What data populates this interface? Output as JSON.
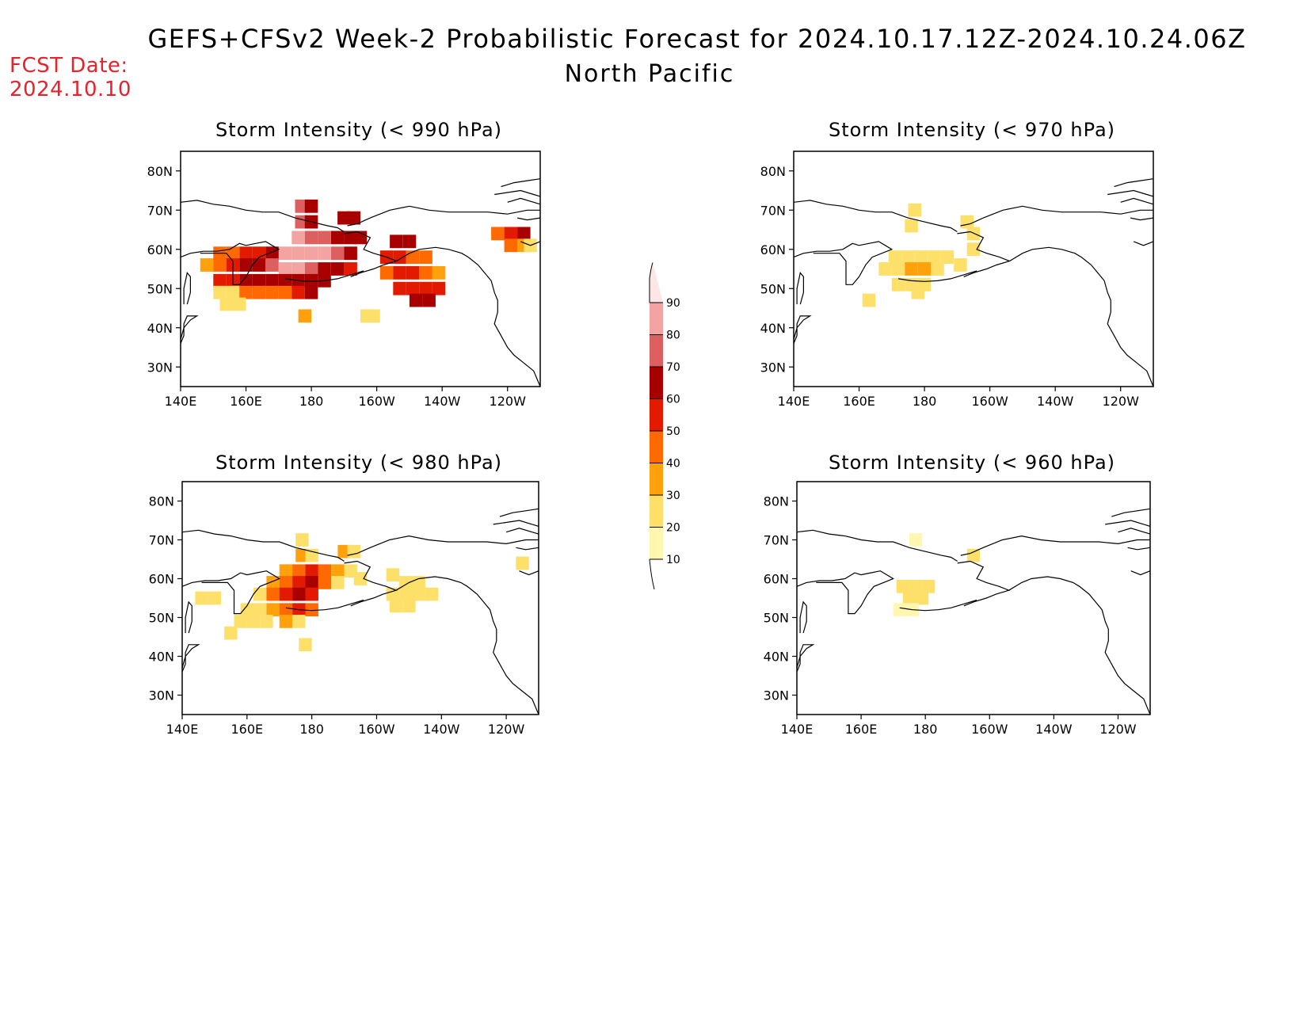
{
  "header": {
    "title": "GEFS+CFSv2 Week-2 Probabilistic Forecast for 2024.10.17.12Z-2024.10.24.06Z",
    "subtitle": "North Pacific",
    "fcst_label": "FCST Date:",
    "fcst_date": "2024.10.10"
  },
  "colors": {
    "fcst_text": "#e8222a",
    "scale": [
      "#fff7b0",
      "#fde06a",
      "#ffa10a",
      "#ff6a00",
      "#e21a00",
      "#a80000",
      "#dd6060",
      "#f4a3a3",
      "#fde6e6"
    ]
  },
  "chart_data": {
    "type": "heatmap",
    "x_ticks": [
      "140E",
      "160E",
      "180",
      "160W",
      "140W",
      "120W"
    ],
    "y_ticks": [
      "80N",
      "70N",
      "60N",
      "50N",
      "40N",
      "30N"
    ],
    "lon_range": [
      140,
      250
    ],
    "lat_range": [
      25,
      85
    ],
    "colorbar": {
      "levels": [
        10,
        20,
        30,
        40,
        50,
        60,
        70,
        80,
        90
      ],
      "labels": [
        "10",
        "20",
        "30",
        "40",
        "50",
        "60",
        "70",
        "80",
        "90"
      ]
    },
    "panels": [
      {
        "id": "p990",
        "title": "Storm Intensity (< 990 hPa)",
        "cells": [
          [
            177,
            71,
            70
          ],
          [
            180,
            71,
            60
          ],
          [
            177,
            67,
            70
          ],
          [
            180,
            67,
            60
          ],
          [
            176,
            63,
            80
          ],
          [
            180,
            63,
            70
          ],
          [
            184,
            63,
            70
          ],
          [
            188,
            63,
            60
          ],
          [
            192,
            63,
            60
          ],
          [
            195,
            63,
            60
          ],
          [
            190,
            68,
            60
          ],
          [
            193,
            68,
            60
          ],
          [
            172,
            59,
            80
          ],
          [
            176,
            59,
            80
          ],
          [
            180,
            59,
            80
          ],
          [
            184,
            59,
            80
          ],
          [
            188,
            59,
            70
          ],
          [
            192,
            59,
            60
          ],
          [
            168,
            59,
            60
          ],
          [
            164,
            59,
            50
          ],
          [
            160,
            59,
            50
          ],
          [
            156,
            59,
            40
          ],
          [
            152,
            59,
            40
          ],
          [
            148,
            56,
            30
          ],
          [
            152,
            56,
            40
          ],
          [
            156,
            56,
            50
          ],
          [
            160,
            56,
            60
          ],
          [
            164,
            56,
            60
          ],
          [
            168,
            56,
            70
          ],
          [
            172,
            55,
            80
          ],
          [
            176,
            55,
            80
          ],
          [
            180,
            55,
            70
          ],
          [
            184,
            55,
            60
          ],
          [
            188,
            55,
            60
          ],
          [
            192,
            55,
            50
          ],
          [
            160,
            52,
            60
          ],
          [
            164,
            52,
            60
          ],
          [
            168,
            52,
            60
          ],
          [
            172,
            52,
            60
          ],
          [
            176,
            52,
            60
          ],
          [
            180,
            52,
            60
          ],
          [
            184,
            52,
            60
          ],
          [
            152,
            52,
            50
          ],
          [
            156,
            52,
            50
          ],
          [
            152,
            49,
            20
          ],
          [
            156,
            49,
            20
          ],
          [
            160,
            49,
            40
          ],
          [
            164,
            49,
            40
          ],
          [
            168,
            49,
            40
          ],
          [
            172,
            49,
            40
          ],
          [
            176,
            49,
            50
          ],
          [
            180,
            49,
            60
          ],
          [
            154,
            46,
            20
          ],
          [
            158,
            46,
            20
          ],
          [
            178,
            43,
            30
          ],
          [
            197,
            43,
            20
          ],
          [
            199,
            43,
            20
          ],
          [
            206,
            62,
            60
          ],
          [
            210,
            62,
            60
          ],
          [
            203,
            58,
            50
          ],
          [
            207,
            58,
            50
          ],
          [
            211,
            58,
            40
          ],
          [
            215,
            58,
            40
          ],
          [
            203,
            54,
            40
          ],
          [
            207,
            54,
            50
          ],
          [
            211,
            54,
            50
          ],
          [
            215,
            54,
            40
          ],
          [
            219,
            54,
            30
          ],
          [
            207,
            50,
            50
          ],
          [
            211,
            50,
            50
          ],
          [
            215,
            50,
            50
          ],
          [
            219,
            50,
            50
          ],
          [
            212,
            47,
            60
          ],
          [
            216,
            47,
            60
          ],
          [
            237,
            64,
            40
          ],
          [
            241,
            64,
            50
          ],
          [
            245,
            64,
            60
          ],
          [
            241,
            61,
            40
          ],
          [
            245,
            61,
            30
          ],
          [
            247,
            61,
            20
          ]
        ]
      },
      {
        "id": "p970",
        "title": "Storm Intensity (< 970 hPa)",
        "cells": [
          [
            177,
            70,
            20
          ],
          [
            176,
            66,
            20
          ],
          [
            193,
            67,
            20
          ],
          [
            195,
            64,
            20
          ],
          [
            195,
            60,
            20
          ],
          [
            171,
            58,
            20
          ],
          [
            175,
            58,
            20
          ],
          [
            179,
            58,
            20
          ],
          [
            183,
            58,
            20
          ],
          [
            187,
            58,
            20
          ],
          [
            191,
            56,
            20
          ],
          [
            168,
            55,
            20
          ],
          [
            172,
            55,
            20
          ],
          [
            176,
            55,
            30
          ],
          [
            180,
            55,
            30
          ],
          [
            184,
            55,
            20
          ],
          [
            172,
            51,
            20
          ],
          [
            176,
            51,
            20
          ],
          [
            180,
            51,
            20
          ],
          [
            178,
            49,
            20
          ],
          [
            163,
            47,
            20
          ]
        ]
      },
      {
        "id": "p980",
        "title": "Storm Intensity (< 980 hPa)",
        "cells": [
          [
            177,
            70,
            20
          ],
          [
            177,
            66,
            30
          ],
          [
            180,
            66,
            20
          ],
          [
            190,
            67,
            30
          ],
          [
            193,
            67,
            20
          ],
          [
            172,
            62,
            30
          ],
          [
            176,
            62,
            40
          ],
          [
            180,
            62,
            50
          ],
          [
            184,
            62,
            40
          ],
          [
            188,
            62,
            30
          ],
          [
            192,
            62,
            20
          ],
          [
            195,
            60,
            20
          ],
          [
            168,
            59,
            30
          ],
          [
            172,
            59,
            40
          ],
          [
            176,
            59,
            50
          ],
          [
            180,
            59,
            60
          ],
          [
            184,
            59,
            40
          ],
          [
            188,
            59,
            20
          ],
          [
            164,
            56,
            20
          ],
          [
            168,
            56,
            40
          ],
          [
            172,
            56,
            50
          ],
          [
            176,
            56,
            60
          ],
          [
            180,
            56,
            50
          ],
          [
            160,
            52,
            20
          ],
          [
            164,
            52,
            20
          ],
          [
            168,
            52,
            30
          ],
          [
            172,
            52,
            40
          ],
          [
            176,
            52,
            50
          ],
          [
            180,
            52,
            40
          ],
          [
            158,
            49,
            20
          ],
          [
            162,
            49,
            20
          ],
          [
            166,
            49,
            20
          ],
          [
            172,
            49,
            30
          ],
          [
            176,
            49,
            20
          ],
          [
            155,
            46,
            20
          ],
          [
            178,
            43,
            20
          ],
          [
            146,
            55,
            20
          ],
          [
            150,
            55,
            20
          ],
          [
            205,
            61,
            20
          ],
          [
            209,
            59,
            20
          ],
          [
            213,
            59,
            20
          ],
          [
            205,
            56,
            20
          ],
          [
            209,
            56,
            20
          ],
          [
            213,
            56,
            20
          ],
          [
            217,
            56,
            20
          ],
          [
            206,
            53,
            20
          ],
          [
            210,
            53,
            20
          ],
          [
            245,
            64,
            20
          ]
        ]
      },
      {
        "id": "p960",
        "title": "Storm Intensity (< 960 hPa)",
        "cells": [
          [
            177,
            70,
            10
          ],
          [
            195,
            66,
            20
          ],
          [
            173,
            58,
            20
          ],
          [
            177,
            58,
            20
          ],
          [
            181,
            58,
            20
          ],
          [
            175,
            55,
            20
          ],
          [
            179,
            55,
            20
          ],
          [
            172,
            52,
            10
          ],
          [
            176,
            52,
            10
          ]
        ]
      }
    ]
  }
}
